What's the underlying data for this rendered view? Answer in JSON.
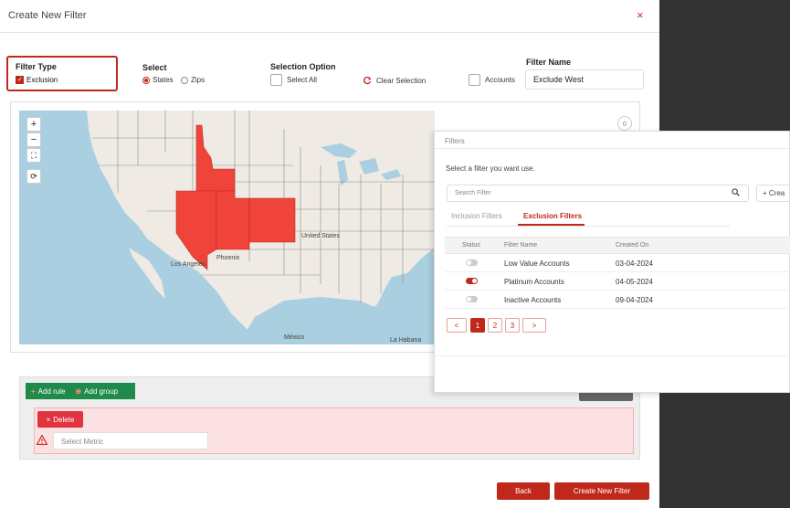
{
  "modal": {
    "title": "Create New Filter",
    "close_symbol": "×"
  },
  "filter_type": {
    "label": "Filter Type",
    "option_label": "Exclusion",
    "checked": true
  },
  "select": {
    "label": "Select",
    "options": [
      "States",
      "Zips"
    ],
    "selected": "States"
  },
  "selection_option": {
    "label": "Selection Option",
    "select_all": "Select All",
    "clear_selection": "Clear Selection",
    "accounts": "Accounts"
  },
  "filter_name": {
    "label": "Filter Name",
    "value": "Exclude West"
  },
  "map": {
    "controls": [
      "zoom-in",
      "zoom-out",
      "fullscreen",
      "refresh"
    ],
    "labels": {
      "phoenix": "Phoenix",
      "los_angeles": "Los Angeles",
      "united_states": "United States",
      "mexico": "México",
      "la_habana": "La Habana"
    },
    "selected_states": [
      "Idaho",
      "Nevada",
      "Utah",
      "Colorado"
    ],
    "colors": {
      "water": "#a9cfe0",
      "land": "#efeae4",
      "selected": "#f0443a",
      "border": "#8a8a8a"
    }
  },
  "rules": {
    "add_rule": "Add rule",
    "add_group": "Add group",
    "delete": "Delete",
    "metric_placeholder": "Select Metric"
  },
  "footer": {
    "back": "Back",
    "create": "Create New Filter"
  },
  "filters_panel": {
    "title": "Filters",
    "hint": "Select a filter you want use.",
    "search_placeholder": "Search Filter",
    "create_label": "+ Crea",
    "tabs": [
      {
        "label": "Inclusion Filters",
        "active": false
      },
      {
        "label": "Exclusion Filters",
        "active": true
      }
    ],
    "columns": [
      "Status",
      "Filter Name",
      "Created On"
    ],
    "rows": [
      {
        "status": "off",
        "name": "Low Value Accounts",
        "created": "03-04-2024"
      },
      {
        "status": "on",
        "name": "Platinum Accounts",
        "created": "04-05-2024"
      },
      {
        "status": "off",
        "name": "Inactive Accounts",
        "created": "09-04-2024"
      }
    ],
    "pagination": {
      "prev": "<",
      "pages": [
        "1",
        "2",
        "3"
      ],
      "current": "1",
      "next": ">"
    }
  }
}
